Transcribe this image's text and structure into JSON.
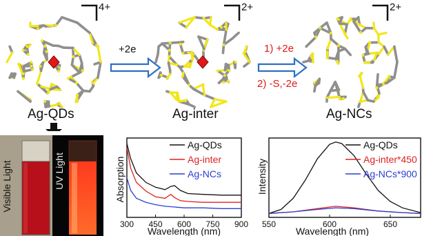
{
  "clusters": [
    {
      "name": "Ag-QDs",
      "charge": "4+",
      "has_center": true
    },
    {
      "name": "Ag-inter",
      "charge": "2+",
      "has_center": true
    },
    {
      "name": "Ag-NCs",
      "charge": "2+",
      "has_center": false
    }
  ],
  "steps": {
    "step1": "+2e",
    "step2a": "1) +2e",
    "step2b": "2) -S,-2e"
  },
  "photo": {
    "visible_label": "Visible Light",
    "uv_label": "UV Light"
  },
  "colors": {
    "ag_atom": "#8f8f8f",
    "s_atom": "#f2e61c",
    "center": "#e01818",
    "arrow": "#2e6fc2",
    "step2": "#e01818",
    "qds": "#111111",
    "inter": "#e02020",
    "ncs": "#2a3fd0"
  },
  "chart_data": [
    {
      "type": "line",
      "title": "",
      "xlabel": "Wavelength (nm)",
      "ylabel": "Absorption",
      "xlim": [
        300,
        900
      ],
      "xticks": [
        "300",
        "450",
        "600",
        "750",
        "900"
      ],
      "legend": [
        "Ag-QDs",
        "Ag-inter",
        "Ag-NCs"
      ],
      "legend_position": "top-right",
      "series": [
        {
          "name": "Ag-QDs",
          "x": [
            300,
            320,
            350,
            400,
            450,
            500,
            530,
            550,
            580,
            620,
            700,
            800,
            900
          ],
          "y": [
            0.93,
            0.74,
            0.56,
            0.44,
            0.38,
            0.35,
            0.39,
            0.4,
            0.34,
            0.3,
            0.29,
            0.28,
            0.28
          ]
        },
        {
          "name": "Ag-inter",
          "x": [
            300,
            320,
            350,
            400,
            450,
            500,
            530,
            550,
            580,
            620,
            700,
            800,
            900
          ],
          "y": [
            0.88,
            0.62,
            0.44,
            0.33,
            0.26,
            0.24,
            0.29,
            0.25,
            0.21,
            0.2,
            0.19,
            0.19,
            0.19
          ]
        },
        {
          "name": "Ag-NCs",
          "x": [
            300,
            320,
            350,
            400,
            450,
            500,
            550,
            600,
            700,
            800,
            900
          ],
          "y": [
            0.5,
            0.34,
            0.24,
            0.19,
            0.16,
            0.14,
            0.13,
            0.12,
            0.12,
            0.11,
            0.11
          ]
        }
      ]
    },
    {
      "type": "line",
      "title": "",
      "xlabel": "Wavelength (nm)",
      "ylabel": "Intensity",
      "xlim": [
        550,
        675
      ],
      "xticks": [
        "550",
        "600",
        "650"
      ],
      "legend": [
        "Ag-QDs",
        "Ag-inter*450",
        "Ag-NCs*900"
      ],
      "legend_position": "top-right",
      "series": [
        {
          "name": "Ag-QDs",
          "x": [
            550,
            560,
            570,
            580,
            590,
            600,
            605,
            610,
            620,
            630,
            640,
            650,
            660,
            675
          ],
          "y": [
            0.05,
            0.1,
            0.24,
            0.47,
            0.74,
            0.92,
            0.95,
            0.93,
            0.78,
            0.55,
            0.34,
            0.2,
            0.12,
            0.06
          ]
        },
        {
          "name": "Ag-inter*450",
          "x": [
            550,
            570,
            590,
            605,
            620,
            640,
            660,
            675
          ],
          "y": [
            0.05,
            0.07,
            0.11,
            0.14,
            0.12,
            0.08,
            0.06,
            0.05
          ]
        },
        {
          "name": "Ag-NCs*900",
          "x": [
            550,
            570,
            590,
            605,
            620,
            640,
            660,
            675
          ],
          "y": [
            0.05,
            0.07,
            0.1,
            0.12,
            0.11,
            0.08,
            0.06,
            0.05
          ]
        }
      ]
    }
  ]
}
